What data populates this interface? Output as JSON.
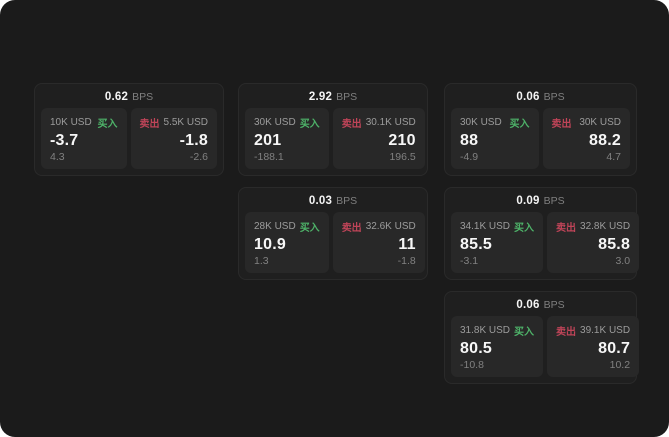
{
  "labels": {
    "bps_unit": "BPS",
    "buy": "买入",
    "sell": "卖出"
  },
  "colors": {
    "background": "#1b1b1b",
    "card_background": "#1f1f1f",
    "panel_background": "#282828",
    "buy_green": "#4eb369",
    "sell_red": "#bf4458"
  },
  "cards": [
    {
      "bps": "0.62",
      "buy": {
        "amount": "10K USD",
        "value": "-3.7",
        "delta": "4.3"
      },
      "sell": {
        "amount": "5.5K USD",
        "value": "-1.8",
        "delta": "-2.6"
      }
    },
    {
      "bps": "2.92",
      "buy": {
        "amount": "30K USD",
        "value": "201",
        "delta": "-188.1"
      },
      "sell": {
        "amount": "30.1K USD",
        "value": "210",
        "delta": "196.5"
      }
    },
    {
      "bps": "0.06",
      "buy": {
        "amount": "30K USD",
        "value": "88",
        "delta": "-4.9"
      },
      "sell": {
        "amount": "30K USD",
        "value": "88.2",
        "delta": "4.7"
      }
    },
    {
      "bps": "0.03",
      "buy": {
        "amount": "28K USD",
        "value": "10.9",
        "delta": "1.3"
      },
      "sell": {
        "amount": "32.6K USD",
        "value": "11",
        "delta": "-1.8"
      }
    },
    {
      "bps": "0.09",
      "buy": {
        "amount": "34.1K USD",
        "value": "85.5",
        "delta": "-3.1"
      },
      "sell": {
        "amount": "32.8K USD",
        "value": "85.8",
        "delta": "3.0"
      }
    },
    {
      "bps": "0.06",
      "buy": {
        "amount": "31.8K USD",
        "value": "80.5",
        "delta": "-10.8"
      },
      "sell": {
        "amount": "39.1K USD",
        "value": "80.7",
        "delta": "10.2"
      }
    }
  ]
}
